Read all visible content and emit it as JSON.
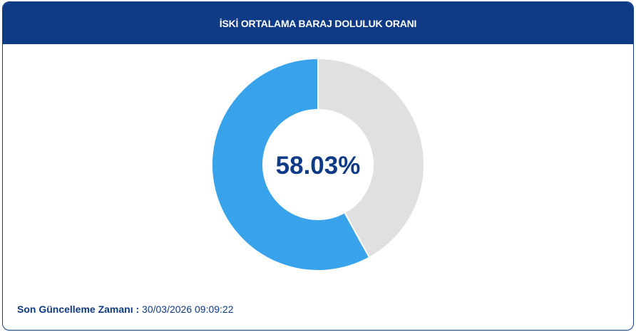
{
  "header": {
    "title": "İSKİ ORTALAMA BARAJ DOLULUK ORANI"
  },
  "chart_data": {
    "type": "pie",
    "variant": "donut",
    "center_label": "58.03%",
    "slices": [
      {
        "value": 58.03,
        "color": "#38a2ea"
      },
      {
        "value": 41.97,
        "color": "#e0e0e0"
      }
    ]
  },
  "footer": {
    "label": "Son Güncelleme Zamanı :",
    "value": "30/03/2026 09:09:22"
  },
  "colors": {
    "primary": "#0f3a85",
    "fill": "#38a2ea",
    "empty": "#e0e0e0"
  }
}
